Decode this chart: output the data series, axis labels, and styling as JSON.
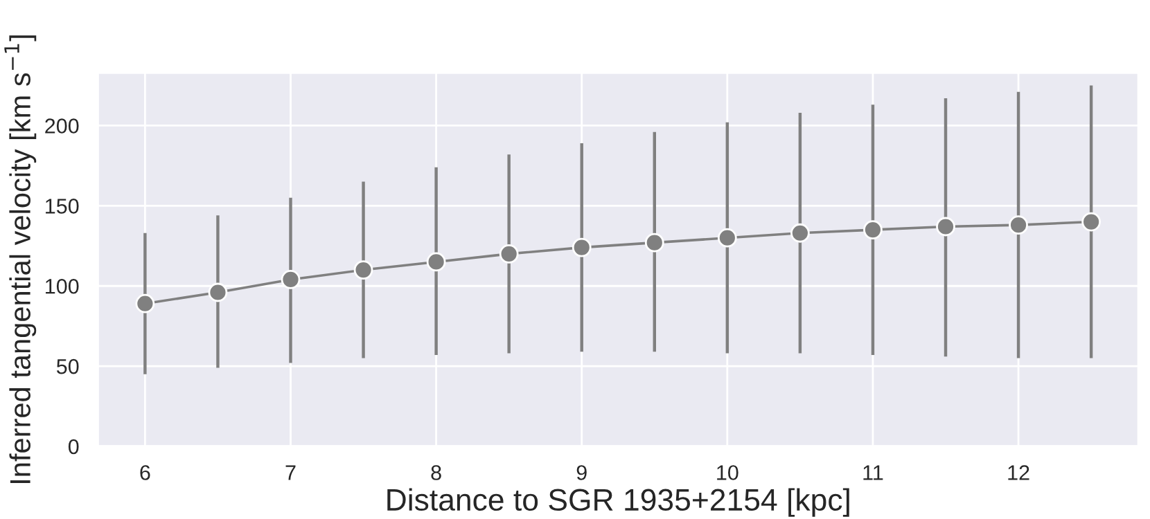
{
  "chart_data": {
    "type": "line",
    "xlabel": "Distance to SGR 1935+2154 [kpc]",
    "ylabel": "Inferred tangential velocity [km s$^{−1}$]",
    "x": [
      6,
      6.5,
      7,
      7.5,
      8,
      8.5,
      9,
      9.5,
      10,
      10.5,
      11,
      11.5,
      12,
      12.5
    ],
    "series": [
      {
        "color": "#808080",
        "values": [
          89,
          96,
          104,
          110,
          115,
          120,
          124,
          127,
          130,
          133,
          135,
          137,
          138,
          140
        ],
        "errors": [
          [
            45,
            133
          ],
          [
            49,
            144
          ],
          [
            52,
            155
          ],
          [
            55,
            165
          ],
          [
            57,
            174
          ],
          [
            58,
            182
          ],
          [
            59,
            189
          ],
          [
            59,
            196
          ],
          [
            58,
            202
          ],
          [
            58,
            208
          ],
          [
            57,
            213
          ],
          [
            56,
            217
          ],
          [
            55,
            221
          ],
          [
            55,
            225
          ]
        ]
      }
    ],
    "xlim": [
      5.675,
      12.825
    ],
    "ylim": [
      0,
      233
    ],
    "xticks": [
      6,
      7,
      8,
      9,
      10,
      11,
      12
    ],
    "yticks": [
      0,
      50,
      100,
      150,
      200
    ],
    "grid": true,
    "marker": "circle",
    "line_style": "solid"
  }
}
